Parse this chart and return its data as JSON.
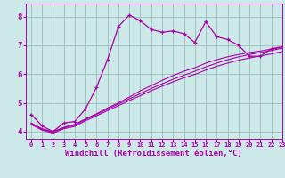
{
  "title": "",
  "xlabel": "Windchill (Refroidissement éolien,°C)",
  "ylabel": "",
  "bg_color": "#cce8e8",
  "line_color": "#aa00aa",
  "grid_color": "#99bbbb",
  "xlim": [
    -0.5,
    23
  ],
  "ylim": [
    3.75,
    8.45
  ],
  "yticks": [
    4,
    5,
    6,
    7,
    8
  ],
  "xticks": [
    0,
    1,
    2,
    3,
    4,
    5,
    6,
    7,
    8,
    9,
    10,
    11,
    12,
    13,
    14,
    15,
    16,
    17,
    18,
    19,
    20,
    21,
    22,
    23
  ],
  "series1_x": [
    0,
    1,
    2,
    3,
    4,
    5,
    6,
    7,
    8,
    9,
    10,
    11,
    12,
    13,
    14,
    15,
    16,
    17,
    18,
    19,
    20,
    21,
    22,
    23
  ],
  "series1_y": [
    4.6,
    4.2,
    4.0,
    4.3,
    4.35,
    4.8,
    5.55,
    6.5,
    7.65,
    8.05,
    7.85,
    7.55,
    7.45,
    7.5,
    7.4,
    7.1,
    7.82,
    7.3,
    7.2,
    7.0,
    6.62,
    6.62,
    6.88,
    6.95
  ],
  "series2_x": [
    0,
    1,
    2,
    3,
    4,
    5,
    6,
    7,
    8,
    9,
    10,
    11,
    12,
    13,
    14,
    15,
    16,
    17,
    18,
    19,
    20,
    21,
    22,
    23
  ],
  "series2_y": [
    4.3,
    4.1,
    4.0,
    4.15,
    4.25,
    4.45,
    4.62,
    4.82,
    5.0,
    5.2,
    5.42,
    5.6,
    5.78,
    5.95,
    6.1,
    6.22,
    6.38,
    6.5,
    6.6,
    6.68,
    6.75,
    6.8,
    6.87,
    6.93
  ],
  "series3_x": [
    0,
    1,
    2,
    3,
    4,
    5,
    6,
    7,
    8,
    9,
    10,
    11,
    12,
    13,
    14,
    15,
    16,
    17,
    18,
    19,
    20,
    21,
    22,
    23
  ],
  "series3_y": [
    4.28,
    4.08,
    3.98,
    4.13,
    4.22,
    4.42,
    4.6,
    4.78,
    4.96,
    5.14,
    5.32,
    5.5,
    5.66,
    5.82,
    5.96,
    6.1,
    6.25,
    6.38,
    6.5,
    6.6,
    6.68,
    6.75,
    6.82,
    6.9
  ],
  "series4_x": [
    0,
    1,
    2,
    3,
    4,
    5,
    6,
    7,
    8,
    9,
    10,
    11,
    12,
    13,
    14,
    15,
    16,
    17,
    18,
    19,
    20,
    21,
    22,
    23
  ],
  "series4_y": [
    4.25,
    4.05,
    3.95,
    4.1,
    4.18,
    4.38,
    4.55,
    4.73,
    4.9,
    5.08,
    5.25,
    5.42,
    5.58,
    5.73,
    5.87,
    5.99,
    6.14,
    6.27,
    6.38,
    6.48,
    6.56,
    6.63,
    6.7,
    6.78
  ]
}
